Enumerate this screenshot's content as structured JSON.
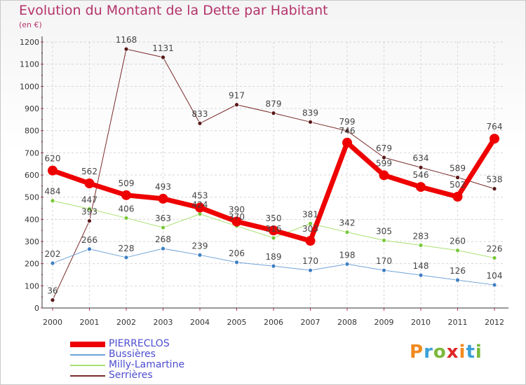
{
  "title": "Evolution du Montant de la Dette par Habitant",
  "subtitle": "(en €)",
  "logo": {
    "letters": [
      "P",
      "r",
      "o",
      "x",
      "i",
      "t",
      "i"
    ],
    "colors": [
      "#f08a1d",
      "#3aa0d8",
      "#7ab83a",
      "#e02525",
      "#f08a1d",
      "#3aa0d8",
      "#7ab83a"
    ]
  },
  "chart_data": {
    "type": "line",
    "categories": [
      "2000",
      "2001",
      "2002",
      "2003",
      "2004",
      "2005",
      "2006",
      "2007",
      "2008",
      "2009",
      "2010",
      "2011",
      "2012"
    ],
    "ylim": [
      0,
      1200
    ],
    "yticks": [
      0,
      100,
      200,
      300,
      400,
      500,
      600,
      700,
      800,
      900,
      1000,
      1100,
      1200
    ],
    "grid": true,
    "legend_position": "bottom-left",
    "series": [
      {
        "name": "Serrières",
        "color": "#7a2a2a",
        "point": "#5a1818",
        "width": 1,
        "radius": 3,
        "values": [
          36,
          393,
          1168,
          1131,
          833,
          917,
          879,
          839,
          799,
          679,
          634,
          589,
          538
        ]
      },
      {
        "name": "Bussières",
        "color": "#6fa3d8",
        "point": "#3f7fc4",
        "width": 1,
        "radius": 3,
        "values": [
          202,
          266,
          228,
          268,
          239,
          206,
          189,
          170,
          198,
          170,
          148,
          126,
          104
        ]
      },
      {
        "name": "Milly-Lamartine",
        "color": "#a9e06e",
        "point": "#77c83a",
        "width": 1,
        "radius": 3,
        "values": [
          484,
          447,
          406,
          363,
          424,
          370,
          316,
          381,
          342,
          305,
          283,
          260,
          226
        ]
      },
      {
        "name": "PIERRECLOS",
        "color": "#ee0000",
        "point": "#ee0000",
        "width": 7,
        "radius": 7,
        "values": [
          620,
          562,
          509,
          493,
          453,
          390,
          350,
          303,
          746,
          599,
          546,
          502,
          764
        ]
      }
    ],
    "legend_order": [
      "PIERRECLOS",
      "Bussières",
      "Milly-Lamartine",
      "Serrières"
    ]
  }
}
